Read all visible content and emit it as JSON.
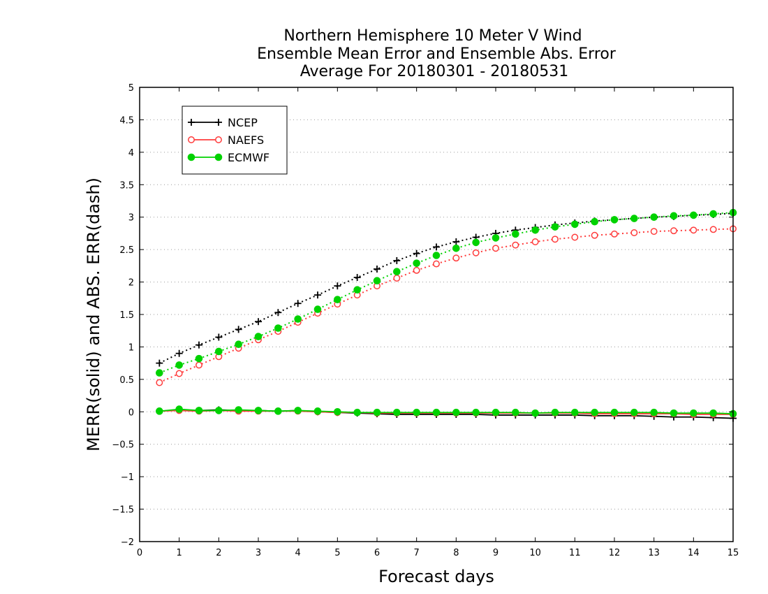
{
  "chart_data": {
    "type": "line",
    "title_lines": [
      "Northern Hemisphere 10 Meter V Wind",
      "Ensemble Mean Error and Ensemble Abs. Error",
      "Average For 20180301 - 20180531"
    ],
    "xlabel": "Forecast days",
    "ylabel": "MERR(solid) and ABS. ERR(dash)",
    "xlim": [
      0,
      15
    ],
    "ylim": [
      -2,
      5
    ],
    "xticks": [
      0,
      1,
      2,
      3,
      4,
      5,
      6,
      7,
      8,
      9,
      10,
      11,
      12,
      13,
      14,
      15
    ],
    "yticks": [
      -2,
      -1.5,
      -1,
      -0.5,
      0,
      0.5,
      1,
      1.5,
      2,
      2.5,
      3,
      3.5,
      4,
      4.5,
      5
    ],
    "grid": "horizontal dotted",
    "legend_position": "top-left",
    "x": [
      0.5,
      1,
      1.5,
      2,
      2.5,
      3,
      3.5,
      4,
      4.5,
      5,
      5.5,
      6,
      6.5,
      7,
      7.5,
      8,
      8.5,
      9,
      9.5,
      10,
      10.5,
      11,
      11.5,
      12,
      12.5,
      13,
      13.5,
      14,
      14.5,
      15
    ],
    "series": [
      {
        "name": "NCEP",
        "color": "#000000",
        "marker": "plus",
        "abs_error": [
          0.75,
          0.9,
          1.03,
          1.15,
          1.27,
          1.39,
          1.53,
          1.67,
          1.8,
          1.94,
          2.07,
          2.2,
          2.33,
          2.44,
          2.54,
          2.62,
          2.69,
          2.75,
          2.8,
          2.84,
          2.88,
          2.91,
          2.94,
          2.96,
          2.98,
          3.0,
          3.01,
          3.03,
          3.04,
          3.06
        ],
        "mean_error": [
          0.01,
          0.03,
          0.02,
          0.03,
          0.02,
          0.02,
          0.01,
          0.02,
          0.0,
          -0.01,
          -0.02,
          -0.03,
          -0.04,
          -0.04,
          -0.04,
          -0.04,
          -0.04,
          -0.05,
          -0.05,
          -0.05,
          -0.05,
          -0.05,
          -0.06,
          -0.06,
          -0.06,
          -0.07,
          -0.08,
          -0.08,
          -0.09,
          -0.1
        ]
      },
      {
        "name": "NAEFS",
        "color": "#ff3b3b",
        "marker": "open-circle",
        "abs_error": [
          0.45,
          0.59,
          0.72,
          0.85,
          0.98,
          1.11,
          1.24,
          1.38,
          1.52,
          1.66,
          1.8,
          1.94,
          2.06,
          2.18,
          2.28,
          2.37,
          2.45,
          2.52,
          2.57,
          2.62,
          2.66,
          2.69,
          2.72,
          2.74,
          2.76,
          2.78,
          2.79,
          2.8,
          2.81,
          2.82
        ],
        "mean_error": [
          0.01,
          0.02,
          0.01,
          0.02,
          0.01,
          0.01,
          0.01,
          0.01,
          0.0,
          -0.01,
          -0.01,
          -0.02,
          -0.02,
          -0.02,
          -0.02,
          -0.02,
          -0.02,
          -0.02,
          -0.02,
          -0.02,
          -0.02,
          -0.02,
          -0.03,
          -0.03,
          -0.03,
          -0.03,
          -0.03,
          -0.04,
          -0.04,
          -0.04
        ]
      },
      {
        "name": "ECMWF",
        "color": "#00d200",
        "marker": "filled-circle",
        "abs_error": [
          0.6,
          0.72,
          0.82,
          0.93,
          1.04,
          1.16,
          1.29,
          1.43,
          1.58,
          1.73,
          1.88,
          2.02,
          2.16,
          2.29,
          2.41,
          2.52,
          2.61,
          2.68,
          2.74,
          2.8,
          2.85,
          2.89,
          2.93,
          2.96,
          2.98,
          3.0,
          3.02,
          3.03,
          3.05,
          3.07
        ],
        "mean_error": [
          0.01,
          0.04,
          0.02,
          0.02,
          0.03,
          0.02,
          0.01,
          0.02,
          0.01,
          0.0,
          -0.01,
          -0.01,
          -0.01,
          -0.01,
          -0.01,
          -0.01,
          -0.01,
          -0.01,
          -0.01,
          -0.02,
          -0.01,
          -0.01,
          -0.01,
          -0.01,
          -0.01,
          -0.01,
          -0.02,
          -0.02,
          -0.02,
          -0.03
        ]
      }
    ]
  }
}
